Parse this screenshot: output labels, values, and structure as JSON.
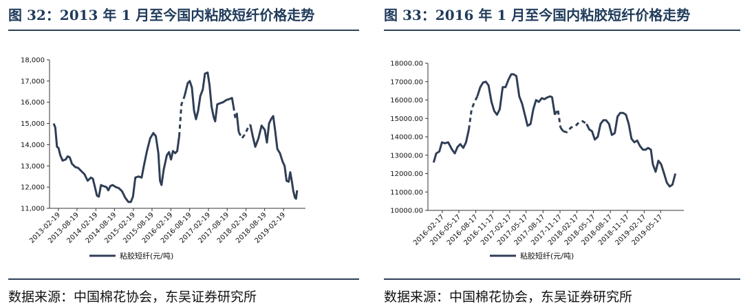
{
  "charts": [
    {
      "title": "图 32：2013 年 1 月至今国内粘胶短纤价格走势",
      "source": "数据来源：中国棉花协会，东吴证券研究所",
      "chart_data": {
        "type": "line",
        "series": [
          {
            "name": "粘胶短纤(元/吨)",
            "color": "#2f3e55"
          }
        ],
        "ylim": [
          11000,
          18000
        ],
        "yticks": [
          "11,000",
          "12,000",
          "13,000",
          "14,000",
          "15,000",
          "16,000",
          "17,000",
          "18,000"
        ],
        "xticks": [
          "2013-02-19",
          "2013-08-19",
          "2014-02-19",
          "2014-08-19",
          "2015-02-19",
          "2015-08-19",
          "2016-02-19",
          "2016-08-19",
          "2017-02-19",
          "2017-08-19",
          "2018-02-19",
          "2018-08-19",
          "2019-02-19"
        ],
        "grid": false,
        "legend": "bottom",
        "points": [
          [
            "2013-01-05",
            15000
          ],
          [
            "2013-01-20",
            14800
          ],
          [
            "2013-02-05",
            13900
          ],
          [
            "2013-02-20",
            13850
          ],
          [
            "2013-03-10",
            13500
          ],
          [
            "2013-04-01",
            13250
          ],
          [
            "2013-05-01",
            13300
          ],
          [
            "2013-05-20",
            13450
          ],
          [
            "2013-06-10",
            13400
          ],
          [
            "2013-07-01",
            13100
          ],
          [
            "2013-08-01",
            12950
          ],
          [
            "2013-09-01",
            12900
          ],
          [
            "2013-10-01",
            12750
          ],
          [
            "2013-11-01",
            12600
          ],
          [
            "2013-12-01",
            12300
          ],
          [
            "2014-01-01",
            12450
          ],
          [
            "2014-01-20",
            12400
          ],
          [
            "2014-02-10",
            12000
          ],
          [
            "2014-03-01",
            11600
          ],
          [
            "2014-03-20",
            11550
          ],
          [
            "2014-04-10",
            12100
          ],
          [
            "2014-05-01",
            12050
          ],
          [
            "2014-06-01",
            12000
          ],
          [
            "2014-06-20",
            11850
          ],
          [
            "2014-07-10",
            12050
          ],
          [
            "2014-08-01",
            12100
          ],
          [
            "2014-09-01",
            12000
          ],
          [
            "2014-10-01",
            11950
          ],
          [
            "2014-11-01",
            11800
          ],
          [
            "2014-12-01",
            11500
          ],
          [
            "2015-01-01",
            11300
          ],
          [
            "2015-01-25",
            11300
          ],
          [
            "2015-02-15",
            11550
          ],
          [
            "2015-03-10",
            12450
          ],
          [
            "2015-04-10",
            12500
          ],
          [
            "2015-05-10",
            12450
          ],
          [
            "2015-06-01",
            13000
          ],
          [
            "2015-07-01",
            13700
          ],
          [
            "2015-08-01",
            14300
          ],
          [
            "2015-09-01",
            14550
          ],
          [
            "2015-09-25",
            14400
          ],
          [
            "2015-10-20",
            13600
          ],
          [
            "2015-11-05",
            12300
          ],
          [
            "2015-11-20",
            12100
          ],
          [
            "2015-12-10",
            12800
          ],
          [
            "2016-01-10",
            13500
          ],
          [
            "2016-02-01",
            13650
          ],
          [
            "2016-02-20",
            13300
          ],
          [
            "2016-03-10",
            13700
          ],
          [
            "2016-04-01",
            13600
          ],
          [
            "2016-04-20",
            13700
          ],
          [
            "2016-05-10",
            14400
          ],
          [
            "2016-06-01",
            15900
          ],
          [
            "2016-07-01",
            16300
          ],
          [
            "2016-08-01",
            16900
          ],
          [
            "2016-08-20",
            17000
          ],
          [
            "2016-09-10",
            16700
          ],
          [
            "2016-10-01",
            15600
          ],
          [
            "2016-10-20",
            15200
          ],
          [
            "2016-11-10",
            15600
          ],
          [
            "2016-12-01",
            16300
          ],
          [
            "2016-12-25",
            16600
          ],
          [
            "2017-01-15",
            17350
          ],
          [
            "2017-02-10",
            17400
          ],
          [
            "2017-03-01",
            16800
          ],
          [
            "2017-03-20",
            15800
          ],
          [
            "2017-04-10",
            15300
          ],
          [
            "2017-04-25",
            15100
          ],
          [
            "2017-05-15",
            15900
          ],
          [
            "2017-06-10",
            15950
          ],
          [
            "2017-07-10",
            16000
          ],
          [
            "2017-08-10",
            16100
          ],
          [
            "2017-09-10",
            16150
          ],
          [
            "2017-10-05",
            16200
          ],
          [
            "2017-10-20",
            15800
          ],
          [
            "2017-11-05",
            15300
          ],
          [
            "2017-11-20",
            15500
          ],
          [
            "2017-12-10",
            14600
          ],
          [
            "2018-01-10",
            14300
          ],
          [
            "2018-02-10",
            14500
          ],
          [
            "2018-03-10",
            14800
          ],
          [
            "2018-04-01",
            14950
          ],
          [
            "2018-04-25",
            14400
          ],
          [
            "2018-05-20",
            13900
          ],
          [
            "2018-06-20",
            14300
          ],
          [
            "2018-07-20",
            14900
          ],
          [
            "2018-08-20",
            14700
          ],
          [
            "2018-09-10",
            14100
          ],
          [
            "2018-10-01",
            15000
          ],
          [
            "2018-10-20",
            15200
          ],
          [
            "2018-11-10",
            15350
          ],
          [
            "2018-12-01",
            14600
          ],
          [
            "2018-12-20",
            13800
          ],
          [
            "2019-01-15",
            13600
          ],
          [
            "2019-02-10",
            13200
          ],
          [
            "2019-03-01",
            13000
          ],
          [
            "2019-03-20",
            12300
          ],
          [
            "2019-04-10",
            12250
          ],
          [
            "2019-04-25",
            12700
          ],
          [
            "2019-05-10",
            12300
          ],
          [
            "2019-05-25",
            11800
          ],
          [
            "2019-06-10",
            11500
          ],
          [
            "2019-06-20",
            11450
          ],
          [
            "2019-07-01",
            11850
          ]
        ],
        "gaps": [
          [
            "2016-05-10",
            "2016-07-15"
          ],
          [
            "2017-10-20",
            "2017-11-25"
          ],
          [
            "2017-12-05",
            "2018-04-10"
          ]
        ]
      }
    },
    {
      "title": "图 33：2016 年 1 月至今国内粘胶短纤价格走势",
      "source": "数据来源：中国棉花协会，东吴证券研究所",
      "chart_data": {
        "type": "line",
        "series": [
          {
            "name": "粘胶短纤(元/吨)",
            "color": "#2f3e55"
          }
        ],
        "ylim": [
          10000,
          18000
        ],
        "yticks": [
          "10000.00",
          "11000.00",
          "12000.00",
          "13000.00",
          "14000.00",
          "15000.00",
          "16000.00",
          "17000.00",
          "18000.00"
        ],
        "xticks": [
          "2016-02-17",
          "2016-05-17",
          "2016-08-17",
          "2016-11-17",
          "2017-02-17",
          "2017-05-17",
          "2017-08-17",
          "2017-11-17",
          "2018-02-17",
          "2018-05-17",
          "2018-08-17",
          "2018-11-17",
          "2019-02-17",
          "2019-05-17"
        ],
        "grid": false,
        "legend": "bottom",
        "points": [
          [
            "2016-01-01",
            12600
          ],
          [
            "2016-01-15",
            13100
          ],
          [
            "2016-02-01",
            13200
          ],
          [
            "2016-02-15",
            13700
          ],
          [
            "2016-03-01",
            13650
          ],
          [
            "2016-03-20",
            13700
          ],
          [
            "2016-04-10",
            13300
          ],
          [
            "2016-04-25",
            13100
          ],
          [
            "2016-05-10",
            13450
          ],
          [
            "2016-05-25",
            13600
          ],
          [
            "2016-06-10",
            13400
          ],
          [
            "2016-06-25",
            13700
          ],
          [
            "2016-07-10",
            14400
          ],
          [
            "2016-07-25",
            15500
          ],
          [
            "2016-08-10",
            15900
          ],
          [
            "2016-08-25",
            16200
          ],
          [
            "2016-09-10",
            16700
          ],
          [
            "2016-09-25",
            16950
          ],
          [
            "2016-10-10",
            17000
          ],
          [
            "2016-10-25",
            16800
          ],
          [
            "2016-11-10",
            15900
          ],
          [
            "2016-11-25",
            15400
          ],
          [
            "2016-12-10",
            15200
          ],
          [
            "2016-12-25",
            15500
          ],
          [
            "2017-01-10",
            16700
          ],
          [
            "2017-01-25",
            16700
          ],
          [
            "2017-02-10",
            17100
          ],
          [
            "2017-02-25",
            17400
          ],
          [
            "2017-03-10",
            17400
          ],
          [
            "2017-03-25",
            17300
          ],
          [
            "2017-04-10",
            16200
          ],
          [
            "2017-04-25",
            15800
          ],
          [
            "2017-05-10",
            15200
          ],
          [
            "2017-05-25",
            14600
          ],
          [
            "2017-06-10",
            14700
          ],
          [
            "2017-06-25",
            15500
          ],
          [
            "2017-07-10",
            16000
          ],
          [
            "2017-07-25",
            15900
          ],
          [
            "2017-08-10",
            16100
          ],
          [
            "2017-08-25",
            16050
          ],
          [
            "2017-09-10",
            16150
          ],
          [
            "2017-09-25",
            16200
          ],
          [
            "2017-10-05",
            16150
          ],
          [
            "2017-10-20",
            15200
          ],
          [
            "2017-11-05",
            15500
          ],
          [
            "2017-11-20",
            14500
          ],
          [
            "2017-12-05",
            14300
          ],
          [
            "2017-12-25",
            14250
          ],
          [
            "2018-01-15",
            14500
          ],
          [
            "2018-02-10",
            14600
          ],
          [
            "2018-03-01",
            14800
          ],
          [
            "2018-03-20",
            14850
          ],
          [
            "2018-04-10",
            14700
          ],
          [
            "2018-04-25",
            14400
          ],
          [
            "2018-05-10",
            14300
          ],
          [
            "2018-05-25",
            13850
          ],
          [
            "2018-06-10",
            14000
          ],
          [
            "2018-06-25",
            14700
          ],
          [
            "2018-07-10",
            14900
          ],
          [
            "2018-07-25",
            14900
          ],
          [
            "2018-08-10",
            14700
          ],
          [
            "2018-08-25",
            14100
          ],
          [
            "2018-09-10",
            14200
          ],
          [
            "2018-09-25",
            15100
          ],
          [
            "2018-10-10",
            15300
          ],
          [
            "2018-10-25",
            15300
          ],
          [
            "2018-11-10",
            15200
          ],
          [
            "2018-11-25",
            14700
          ],
          [
            "2018-12-10",
            13900
          ],
          [
            "2018-12-25",
            13700
          ],
          [
            "2019-01-10",
            13800
          ],
          [
            "2019-01-25",
            13500
          ],
          [
            "2019-02-10",
            13300
          ],
          [
            "2019-02-25",
            13300
          ],
          [
            "2019-03-10",
            13400
          ],
          [
            "2019-03-25",
            13300
          ],
          [
            "2019-04-05",
            12500
          ],
          [
            "2019-04-20",
            12100
          ],
          [
            "2019-05-05",
            12700
          ],
          [
            "2019-05-20",
            12500
          ],
          [
            "2019-06-05",
            12000
          ],
          [
            "2019-06-20",
            11500
          ],
          [
            "2019-07-05",
            11300
          ],
          [
            "2019-07-20",
            11400
          ],
          [
            "2019-08-05",
            12000
          ]
        ],
        "gaps": [
          [
            "2016-07-05",
            "2016-09-01"
          ],
          [
            "2017-10-20",
            "2017-11-25"
          ],
          [
            "2017-12-10",
            "2018-04-15"
          ]
        ]
      }
    }
  ]
}
